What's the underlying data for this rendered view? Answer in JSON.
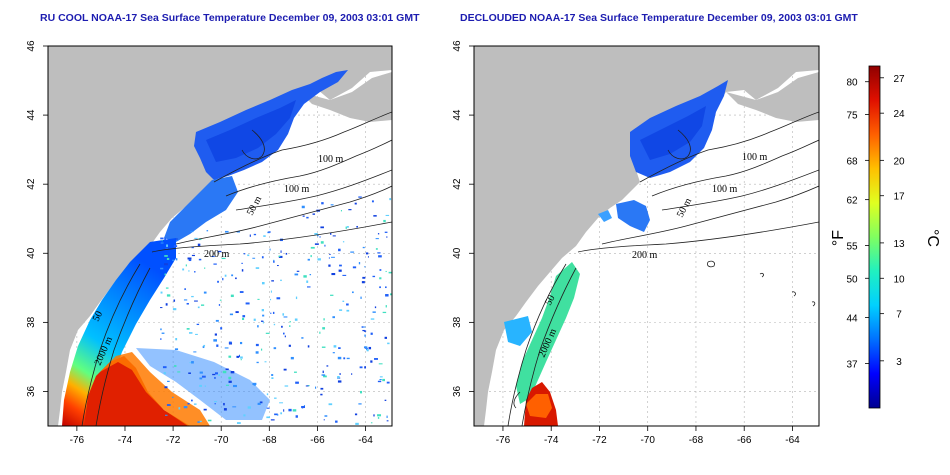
{
  "titles": {
    "left": "RU COOL NOAA-17 Sea Surface Temperature December 09, 2003 03:01 GMT",
    "right": "DECLOUDED NOAA-17 Sea Surface Temperature December 09, 2003 03:01 GMT"
  },
  "axes": {
    "lon_ticks": [
      -76,
      -74,
      -72,
      -70,
      -68,
      -66,
      -64
    ],
    "lat_ticks": [
      36,
      38,
      40,
      42,
      44,
      46
    ],
    "lon_range": [
      -77.2,
      -62.9
    ],
    "lat_range": [
      35.0,
      46.0
    ]
  },
  "contour_labels": [
    "100 m",
    "100 m",
    "50 m",
    "200 m",
    "50",
    "2000 m"
  ],
  "colorbar": {
    "fahrenheit_ticks": [
      37,
      44,
      50,
      55,
      62,
      68,
      75,
      80
    ],
    "celsius_ticks": [
      3,
      7,
      10,
      13,
      17,
      20,
      24,
      27
    ],
    "fahrenheit_unit": "°F",
    "celsius_unit": "°C",
    "range_c": [
      -1,
      28
    ],
    "colors": [
      "#000090",
      "#0000ff",
      "#0070ff",
      "#00d0ff",
      "#20f0c0",
      "#80ff60",
      "#e0ff20",
      "#ffc000",
      "#ff6000",
      "#e01000",
      "#900000"
    ]
  },
  "colors": {
    "land": "#bebebe",
    "title": "#1c1cb0",
    "grid": "#b4b4b4"
  }
}
